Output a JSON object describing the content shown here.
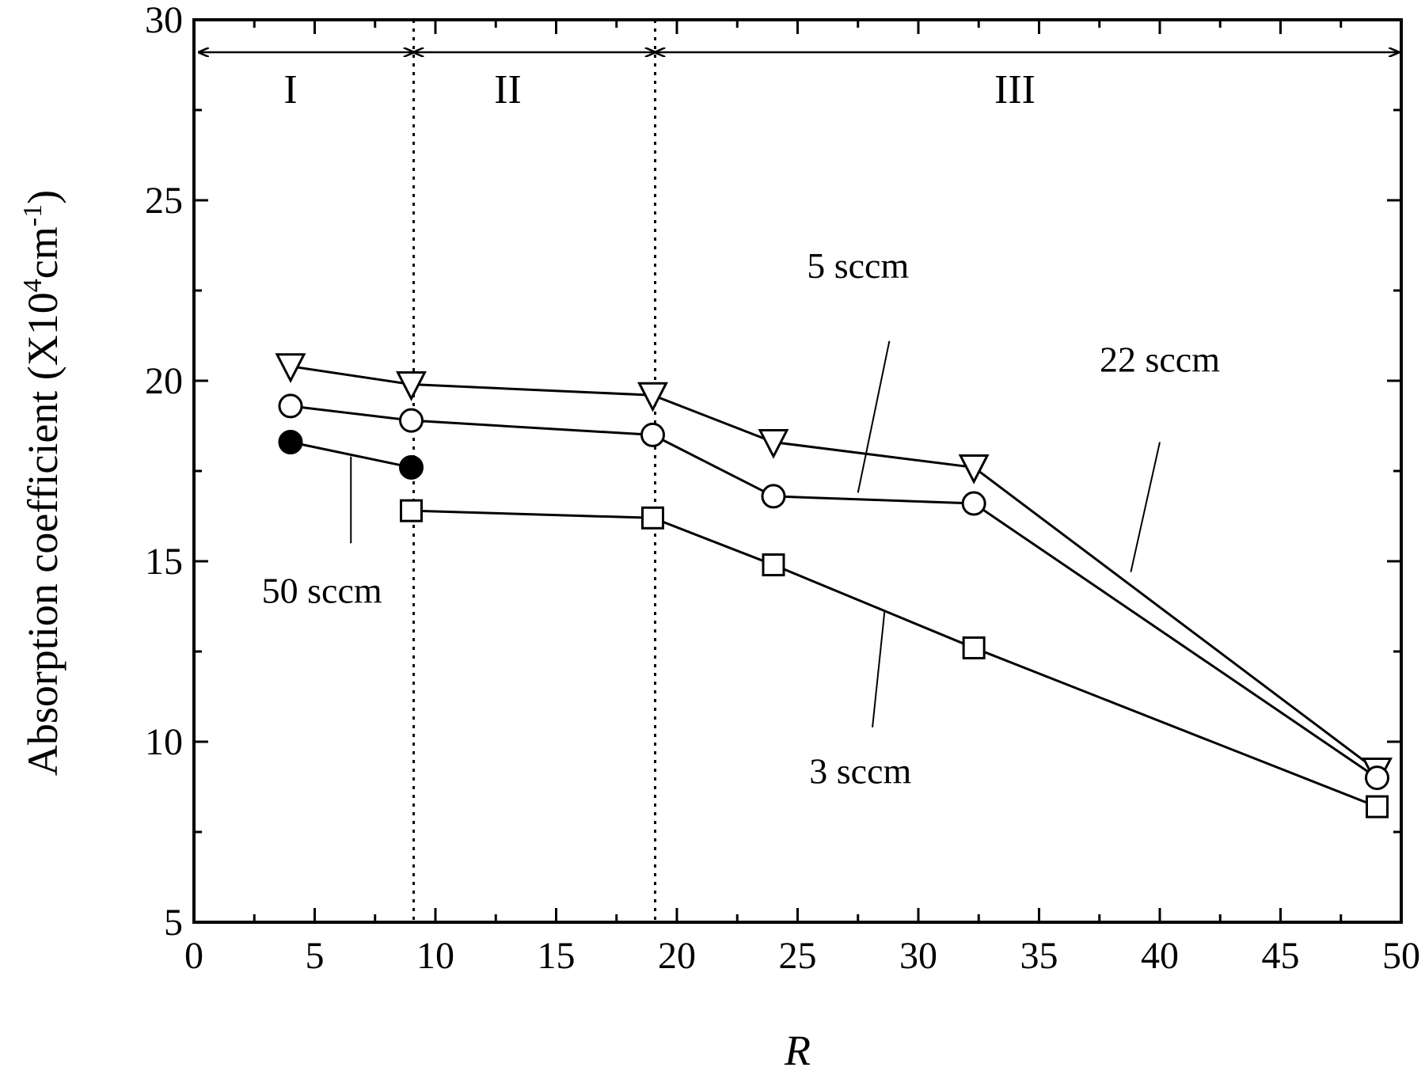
{
  "chart_data": {
    "type": "line",
    "xlabel": "R",
    "ylabel": {
      "prefix": "Absorption coefficient (X10",
      "sup1": "4",
      "mid": "cm",
      "sup2": "-1",
      "suffix": ")"
    },
    "xlim": [
      0,
      50
    ],
    "ylim": [
      5,
      30
    ],
    "xticks": [
      0,
      5,
      10,
      15,
      20,
      25,
      30,
      35,
      40,
      45,
      50
    ],
    "yticks": [
      5,
      10,
      15,
      20,
      25,
      30
    ],
    "colors": {
      "ink": "#000000",
      "open_fill": "#ffffff"
    },
    "series": [
      {
        "marker": "triangle-down",
        "filled": false,
        "x": [
          4,
          9,
          19,
          24,
          32.3,
          49
        ],
        "y": [
          20.4,
          19.9,
          19.6,
          18.3,
          17.6,
          9.2
        ]
      },
      {
        "marker": "circle",
        "filled": false,
        "x": [
          4,
          9,
          19,
          24,
          32.3,
          49
        ],
        "y": [
          19.3,
          18.9,
          18.5,
          16.8,
          16.6,
          9.0
        ]
      },
      {
        "marker": "square",
        "filled": false,
        "x": [
          9,
          19,
          24,
          32.3,
          49
        ],
        "y": [
          16.4,
          16.2,
          14.9,
          12.6,
          8.2
        ]
      },
      {
        "marker": "circle",
        "filled": true,
        "x": [
          4,
          9
        ],
        "y": [
          18.3,
          17.6
        ]
      }
    ],
    "annotations": [
      {
        "text": "5 sccm",
        "label_x": 27.5,
        "label_y": 23.2,
        "line": [
          [
            28.8,
            21.1
          ],
          [
            27.5,
            16.9
          ]
        ]
      },
      {
        "text": "22 sccm",
        "label_x": 40,
        "label_y": 20.6,
        "line": [
          [
            40.0,
            18.3
          ],
          [
            38.8,
            14.7
          ]
        ]
      },
      {
        "text": "50 sccm",
        "label_x": 5.3,
        "label_y": 14.2,
        "line": [
          [
            6.5,
            17.9
          ],
          [
            6.5,
            15.5
          ]
        ]
      },
      {
        "text": "3 sccm",
        "label_x": 27.6,
        "label_y": 9.2,
        "line": [
          [
            28.1,
            10.4
          ],
          [
            28.6,
            13.6
          ]
        ]
      }
    ],
    "regions": [
      {
        "label": "I",
        "from": 0.2,
        "to": 9.1,
        "label_x": 4
      },
      {
        "label": "II",
        "from": 9.1,
        "to": 19.1,
        "label_x": 13
      },
      {
        "label": "III",
        "from": 19.1,
        "to": 49.9,
        "label_x": 34
      }
    ],
    "dividers": [
      9.1,
      19.1
    ],
    "grid": false,
    "legend": "none"
  }
}
